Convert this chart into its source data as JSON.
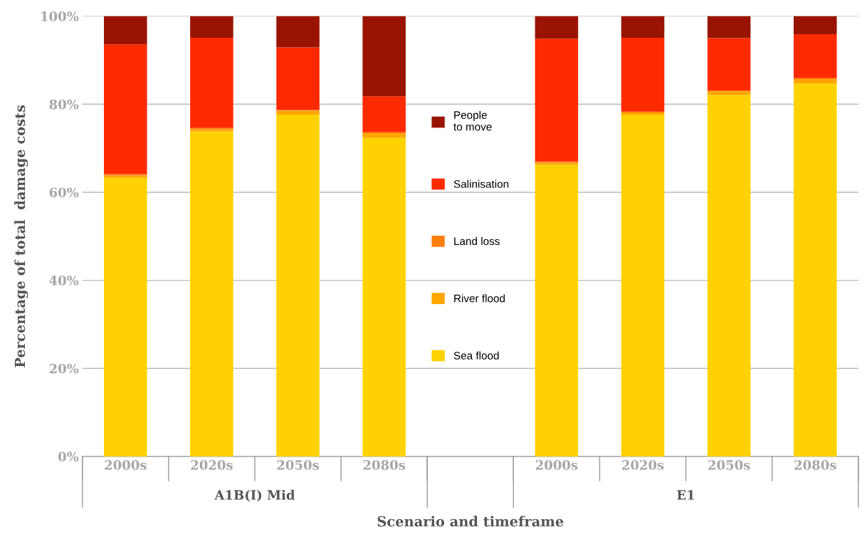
{
  "chart_data": {
    "type": "bar",
    "stacked": true,
    "xlabel": "Scenario and timeframe",
    "ylabel": "Percentage of total  damage costs",
    "categories": [
      "2000s",
      "2020s",
      "2050s",
      "2080s",
      null,
      "2000s",
      "2020s",
      "2050s",
      "2080s"
    ],
    "series": [
      {
        "name": "Sea flood",
        "color": "#ffd200",
        "values": [
          63.3,
          73.8,
          77.6,
          72.4,
          null,
          66.2,
          77.6,
          82.1,
          84.7
        ]
      },
      {
        "name": "River flood",
        "color": "#ffa500",
        "values": [
          0.5,
          0.5,
          0.9,
          1.0,
          null,
          0.5,
          0.5,
          0.8,
          1.0
        ]
      },
      {
        "name": "Land loss",
        "color": "#ff7f0e",
        "values": [
          0.3,
          0.3,
          0.2,
          0.2,
          null,
          0.3,
          0.2,
          0.2,
          0.2
        ]
      },
      {
        "name": "Salinisation",
        "color": "#ff2a00",
        "values": [
          29.5,
          20.5,
          14.2,
          8.2,
          null,
          27.9,
          16.8,
          11.9,
          10.0
        ]
      },
      {
        "name": "People\nto move",
        "color": "#991400",
        "values": [
          6.4,
          4.9,
          7.1,
          18.2,
          null,
          5.1,
          4.9,
          5.0,
          4.1
        ]
      }
    ],
    "annotations": [
      "A1B(I) Mid",
      "E1"
    ],
    "ylim": [
      0,
      100
    ],
    "yticks": [
      {
        "value": 0,
        "label": "0%"
      },
      {
        "value": 20,
        "label": "20%"
      },
      {
        "value": 40,
        "label": "40%"
      },
      {
        "value": 60,
        "label": "60%"
      },
      {
        "value": 80,
        "label": "80%"
      },
      {
        "value": 100,
        "label": "100%"
      }
    ],
    "grid": "y",
    "legend": "center"
  }
}
